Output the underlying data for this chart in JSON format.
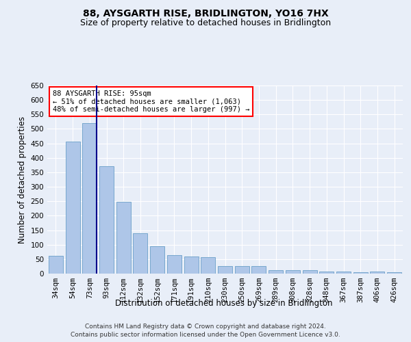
{
  "title": "88, AYSGARTH RISE, BRIDLINGTON, YO16 7HX",
  "subtitle": "Size of property relative to detached houses in Bridlington",
  "xlabel": "Distribution of detached houses by size in Bridlington",
  "ylabel": "Number of detached properties",
  "categories": [
    "34sqm",
    "54sqm",
    "73sqm",
    "93sqm",
    "112sqm",
    "132sqm",
    "152sqm",
    "171sqm",
    "191sqm",
    "210sqm",
    "230sqm",
    "250sqm",
    "269sqm",
    "289sqm",
    "308sqm",
    "328sqm",
    "348sqm",
    "367sqm",
    "387sqm",
    "406sqm",
    "426sqm"
  ],
  "values": [
    62,
    457,
    520,
    370,
    248,
    140,
    95,
    63,
    60,
    57,
    27,
    27,
    27,
    11,
    12,
    12,
    8,
    6,
    5,
    7,
    5
  ],
  "bar_color": "#aec6e8",
  "bar_edge_color": "#6a9fc8",
  "highlight_bar_edge_color": "#00008b",
  "annotation_text": "88 AYSGARTH RISE: 95sqm\n← 51% of detached houses are smaller (1,063)\n48% of semi-detached houses are larger (997) →",
  "annotation_box_color": "white",
  "annotation_box_edge_color": "red",
  "ylim": [
    0,
    650
  ],
  "yticks": [
    0,
    50,
    100,
    150,
    200,
    250,
    300,
    350,
    400,
    450,
    500,
    550,
    600,
    650
  ],
  "background_color": "#e8eef8",
  "plot_bg_color": "#e8eef8",
  "grid_color": "white",
  "title_fontsize": 10,
  "subtitle_fontsize": 9,
  "xlabel_fontsize": 8.5,
  "ylabel_fontsize": 8.5,
  "tick_fontsize": 7.5,
  "footer_line1": "Contains HM Land Registry data © Crown copyright and database right 2024.",
  "footer_line2": "Contains public sector information licensed under the Open Government Licence v3.0.",
  "vline_x_index": 2,
  "vline_color": "#00008b"
}
